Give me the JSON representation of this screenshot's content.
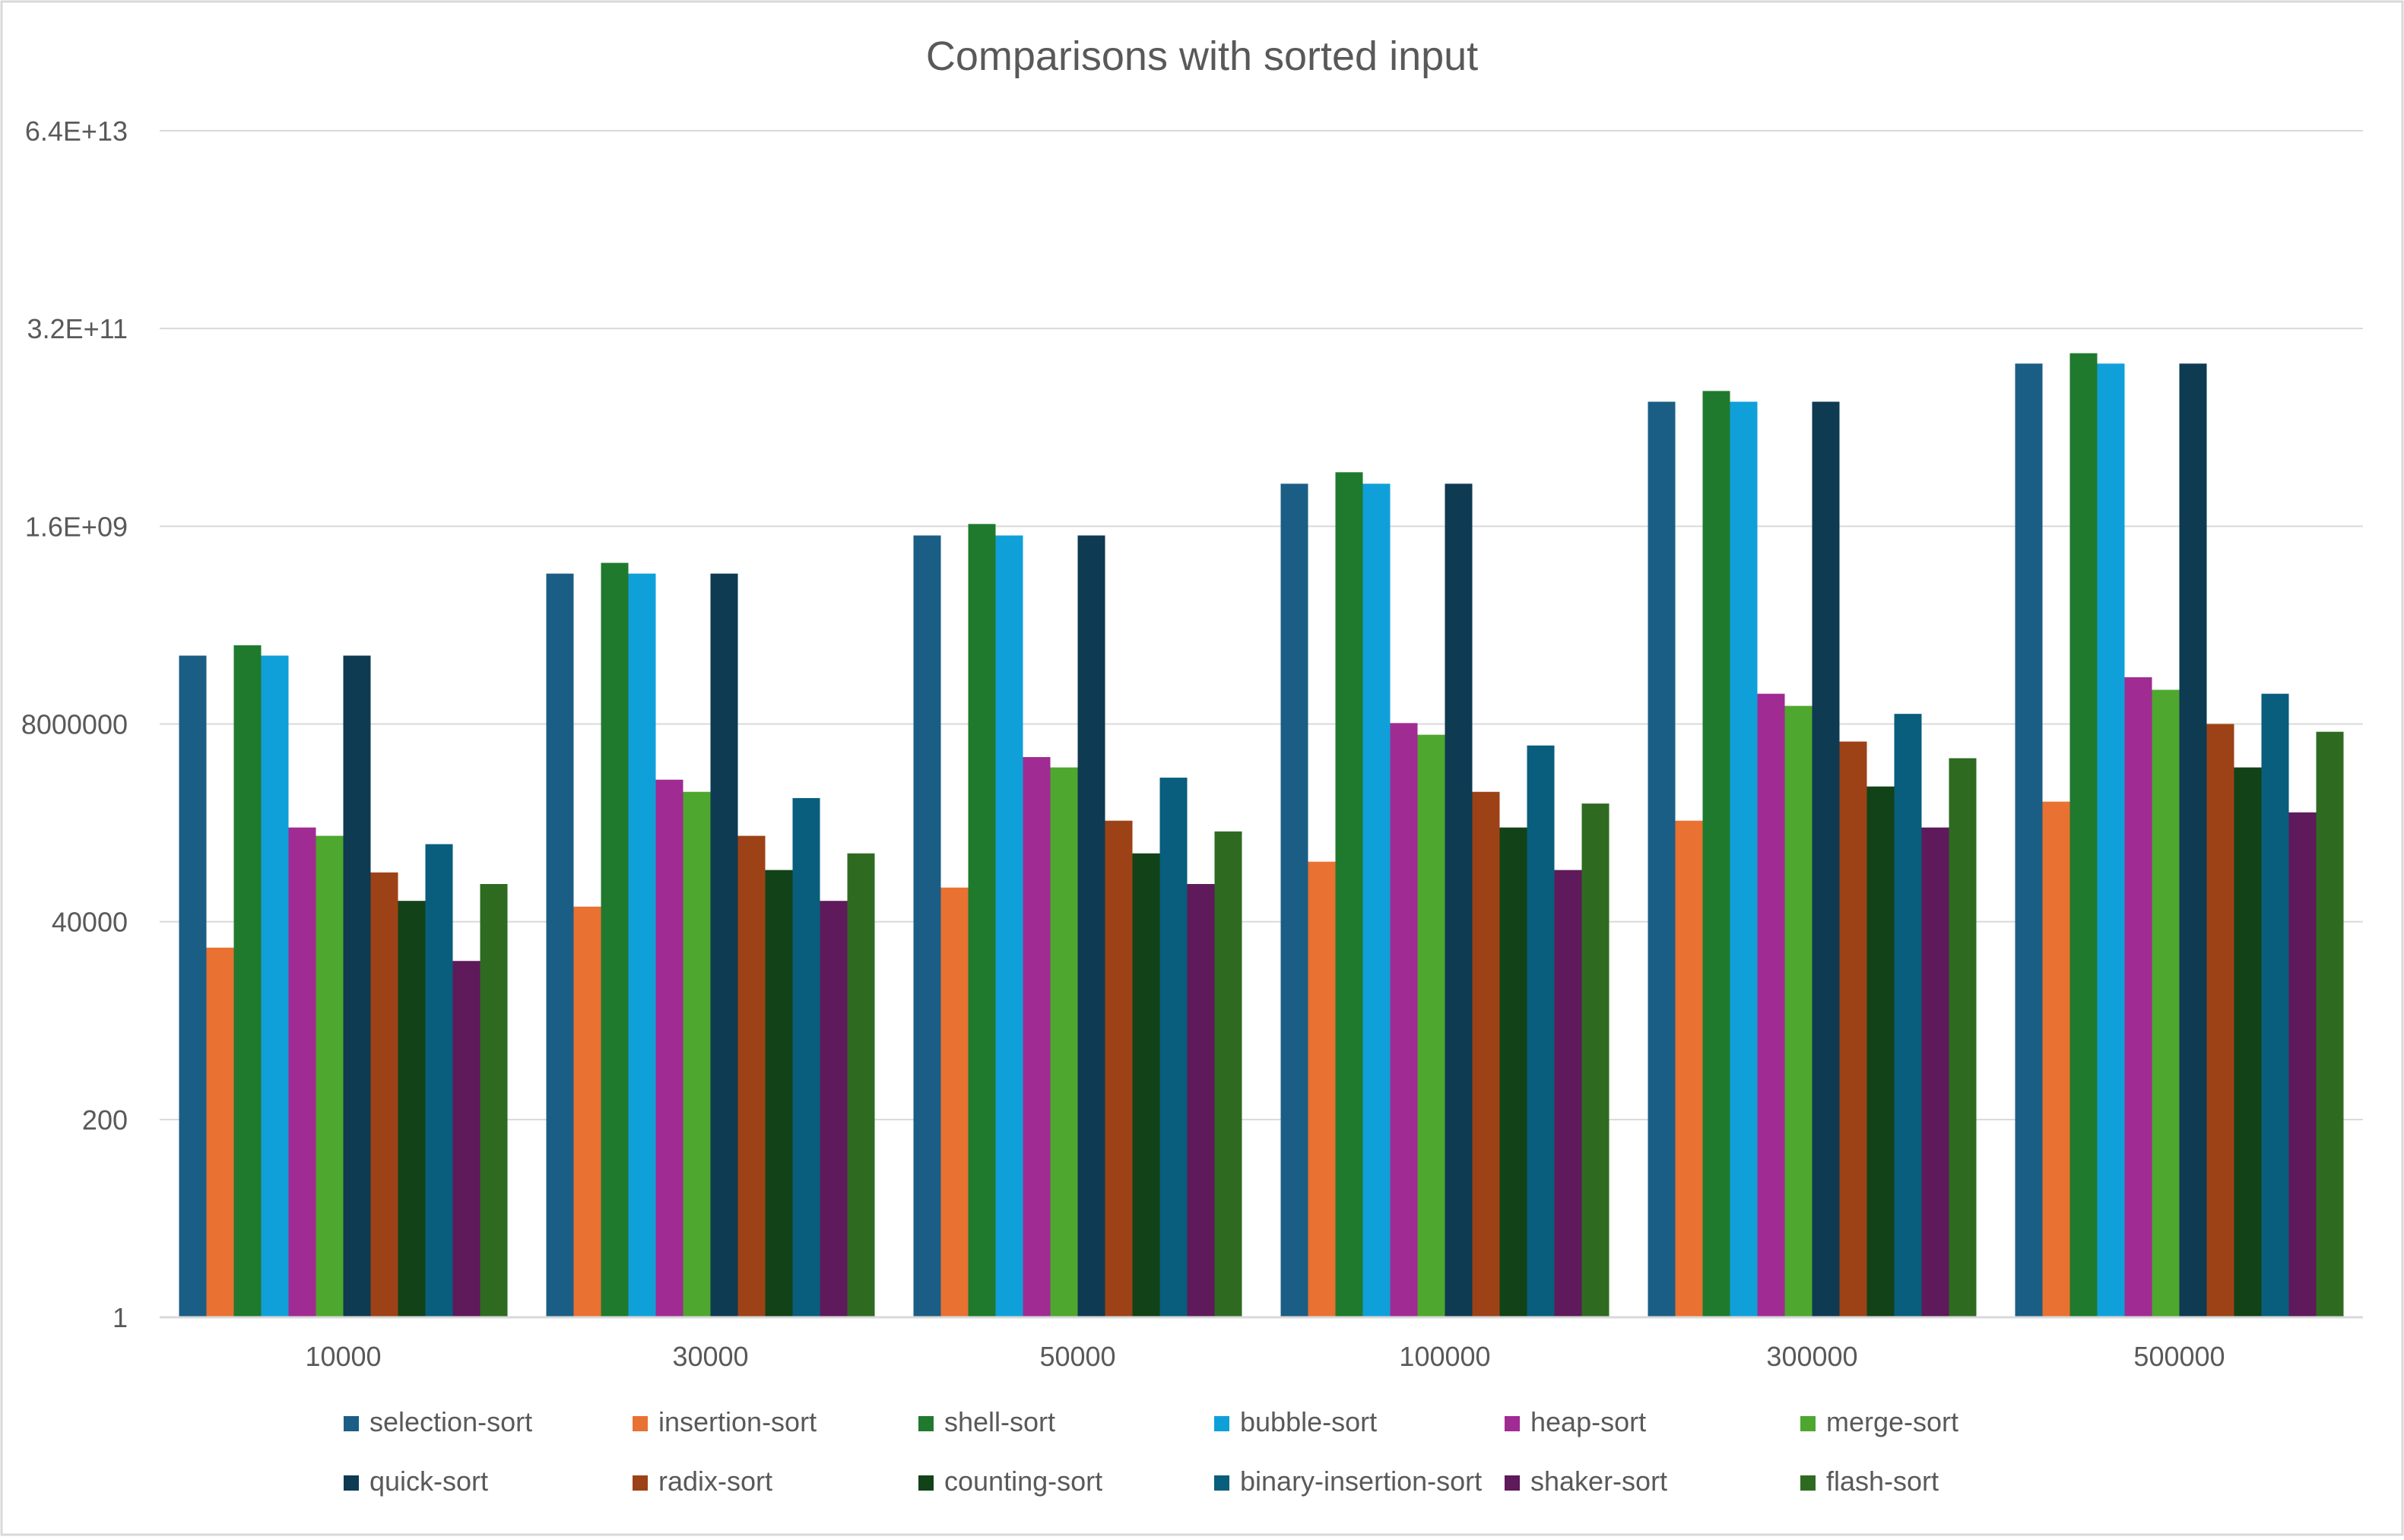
{
  "chart_data": {
    "type": "bar",
    "title": "Comparisons with sorted input",
    "xlabel": "",
    "ylabel": "",
    "y_scale": "log",
    "y_log_base": 200,
    "y_ticks": [
      1,
      200,
      40000,
      8000000,
      1600000000,
      320000000000,
      64000000000000
    ],
    "y_tick_labels": [
      "1",
      "200",
      "40000",
      "8000000",
      "1.6E+09",
      "3.2E+11",
      "6.4E+13"
    ],
    "ylim": [
      1,
      64000000000000
    ],
    "grid": true,
    "legend_position": "bottom",
    "categories": [
      "10000",
      "30000",
      "50000",
      "100000",
      "300000",
      "500000"
    ],
    "series": [
      {
        "name": "selection-sort",
        "color": "#1B5E85",
        "values": [
          50000000,
          450000000,
          1250000000,
          5000000000,
          45000000000,
          125000000000
        ]
      },
      {
        "name": "insertion-sort",
        "color": "#E97132",
        "values": [
          20000,
          60000,
          100000,
          200000,
          600000,
          1000000
        ]
      },
      {
        "name": "shell-sort",
        "color": "#1F7A2E",
        "values": [
          66000000,
          600000000,
          1700000000,
          6800000000,
          60000000000,
          165000000000
        ]
      },
      {
        "name": "bubble-sort",
        "color": "#0FA0DA",
        "values": [
          50000000,
          450000000,
          1250000000,
          5000000000,
          45000000000,
          125000000000
        ]
      },
      {
        "name": "heap-sort",
        "color": "#A02B93",
        "values": [
          500000,
          1800000,
          3300000,
          8200000,
          18000000,
          28000000
        ]
      },
      {
        "name": "merge-sort",
        "color": "#4EA72E",
        "values": [
          400000,
          1300000,
          2500000,
          6000000,
          13000000,
          20000000
        ]
      },
      {
        "name": "quick-sort",
        "color": "#0E3A52",
        "values": [
          50000000,
          450000000,
          1250000000,
          5000000000,
          45000000000,
          125000000000
        ]
      },
      {
        "name": "radix-sort",
        "color": "#9C4216",
        "values": [
          150000,
          400000,
          600000,
          1300000,
          5000000,
          8000000
        ]
      },
      {
        "name": "counting-sort",
        "color": "#124218",
        "values": [
          70000,
          160000,
          250000,
          500000,
          1500000,
          2500000
        ]
      },
      {
        "name": "binary-insertion-sort",
        "color": "#085E7C",
        "values": [
          320000,
          1100000,
          1900000,
          4500000,
          10500000,
          18000000
        ]
      },
      {
        "name": "shaker-sort",
        "color": "#5E1A5A",
        "values": [
          14000,
          70000,
          110000,
          160000,
          500000,
          750000
        ]
      },
      {
        "name": "flash-sort",
        "color": "#2E6B21",
        "values": [
          110000,
          250000,
          450000,
          950000,
          3200000,
          6500000
        ]
      }
    ]
  }
}
